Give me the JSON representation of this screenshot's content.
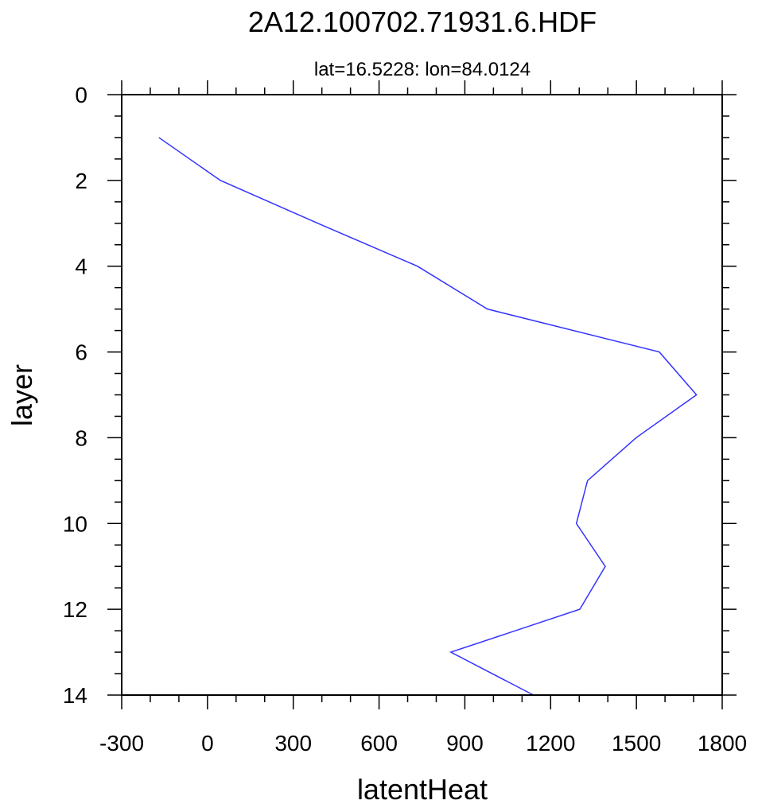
{
  "chart_data": {
    "type": "line",
    "title": "2A12.100702.71931.6.HDF",
    "subtitle": "lat=16.5228: lon=84.0124",
    "xlabel": "latentHeat",
    "ylabel": "layer",
    "xlim": [
      -300,
      1800
    ],
    "ylim": [
      0,
      14
    ],
    "y_reversed": true,
    "grid": false,
    "x_ticks": [
      -300,
      0,
      300,
      600,
      900,
      1200,
      1500,
      1800
    ],
    "x_tick_labels": [
      "-300",
      "0",
      "300",
      "600",
      "900",
      "1200",
      "1500",
      "1800"
    ],
    "y_ticks": [
      0,
      2,
      4,
      6,
      8,
      10,
      12,
      14
    ],
    "y_tick_labels": [
      "0",
      "2",
      "4",
      "6",
      "8",
      "10",
      "12",
      "14"
    ],
    "series": [
      {
        "name": "latentHeat",
        "color": "#3333ff",
        "layer": [
          1,
          2,
          3,
          4,
          5,
          6,
          7,
          8,
          9,
          10,
          11,
          12,
          13,
          14
        ],
        "values": [
          -170,
          45,
          386,
          734,
          979,
          1580,
          1710,
          1499,
          1329,
          1290,
          1391,
          1302,
          851,
          1140
        ]
      }
    ]
  }
}
